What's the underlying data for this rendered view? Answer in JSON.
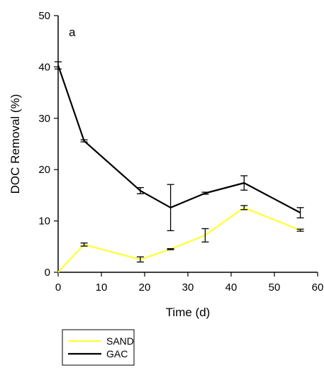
{
  "chart_data": {
    "type": "line",
    "panel_label": "a",
    "xlabel": "Time (d)",
    "ylabel": "DOC Removal (%)",
    "xlim": [
      0,
      60
    ],
    "ylim": [
      0,
      50
    ],
    "x_ticks": [
      0,
      10,
      20,
      30,
      40,
      50,
      60
    ],
    "y_ticks": [
      0,
      10,
      20,
      30,
      40,
      50
    ],
    "grid": false,
    "legend_position": "below-left",
    "series": [
      {
        "name": "SAND",
        "color": "#ffff33",
        "x": [
          0,
          6,
          19,
          26,
          34,
          43,
          56
        ],
        "y": [
          0,
          5.4,
          2.5,
          4.5,
          7.2,
          12.6,
          8.2
        ],
        "error": [
          0,
          0.3,
          0.5,
          0.1,
          1.3,
          0.4,
          0.2
        ]
      },
      {
        "name": "GAC",
        "color": "#000000",
        "x": [
          0,
          6,
          19,
          26,
          34,
          43,
          56
        ],
        "y": [
          40.3,
          25.6,
          15.9,
          12.6,
          15.4,
          17.4,
          11.6
        ],
        "error": [
          0.7,
          0.2,
          0.6,
          4.5,
          0.2,
          1.4,
          1.0
        ]
      }
    ]
  }
}
